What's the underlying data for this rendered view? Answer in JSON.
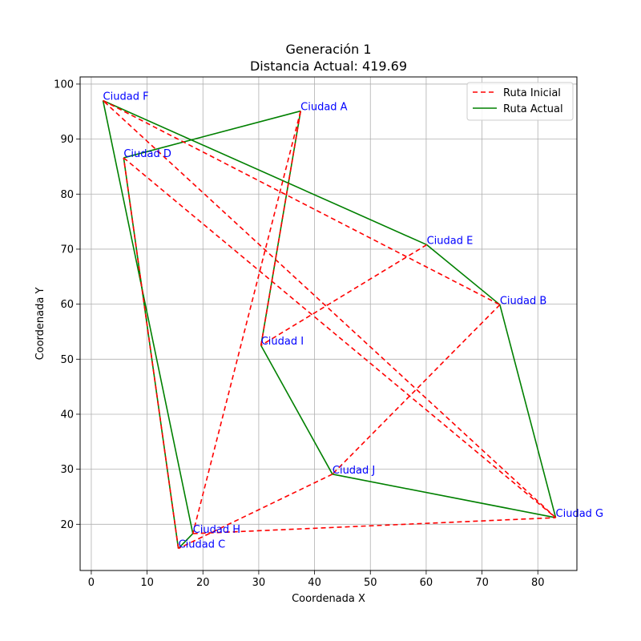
{
  "chart_data": {
    "type": "line",
    "title_line1": "Generación 1",
    "title_line2": "Distancia Actual: 419.69",
    "xlabel": "Coordenada X",
    "ylabel": "Coordenada Y",
    "xlim": [
      -2,
      87
    ],
    "ylim": [
      11.6,
      101.3
    ],
    "xticks": [
      0,
      10,
      20,
      30,
      40,
      50,
      60,
      70,
      80
    ],
    "yticks": [
      20,
      30,
      40,
      50,
      60,
      70,
      80,
      90,
      100
    ],
    "grid": true,
    "legend_position": "top-right",
    "colors": {
      "initial": "#ff0000",
      "current": "#008000",
      "city_label": "#0000ff"
    },
    "cities": [
      {
        "name": "Ciudad A",
        "x": 37.5,
        "y": 95.1
      },
      {
        "name": "Ciudad B",
        "x": 73.2,
        "y": 59.9
      },
      {
        "name": "Ciudad C",
        "x": 15.6,
        "y": 15.6
      },
      {
        "name": "Ciudad D",
        "x": 5.8,
        "y": 86.6
      },
      {
        "name": "Ciudad E",
        "x": 60.1,
        "y": 70.8
      },
      {
        "name": "Ciudad F",
        "x": 2.1,
        "y": 97.0
      },
      {
        "name": "Ciudad G",
        "x": 83.2,
        "y": 21.2
      },
      {
        "name": "Ciudad H",
        "x": 18.2,
        "y": 18.3
      },
      {
        "name": "Ciudad I",
        "x": 30.4,
        "y": 52.5
      },
      {
        "name": "Ciudad J",
        "x": 43.2,
        "y": 29.1
      }
    ],
    "series": [
      {
        "name": "Ruta Inicial",
        "style": "dashed",
        "route": [
          "Ciudad A",
          "Ciudad H",
          "Ciudad G",
          "Ciudad F",
          "Ciudad B",
          "Ciudad J",
          "Ciudad C",
          "Ciudad D",
          "Ciudad G"
        ]
      },
      {
        "name": "Ruta Actual",
        "style": "solid",
        "route": [
          "Ciudad F",
          "Ciudad H",
          "Ciudad C",
          "Ciudad D",
          "Ciudad A",
          "Ciudad I",
          "Ciudad J",
          "Ciudad G",
          "Ciudad B",
          "Ciudad E",
          "Ciudad F"
        ]
      }
    ],
    "extra_initial_segments": [
      [
        "Ciudad E",
        "Ciudad I"
      ],
      [
        "Ciudad I",
        "Ciudad A"
      ]
    ]
  }
}
